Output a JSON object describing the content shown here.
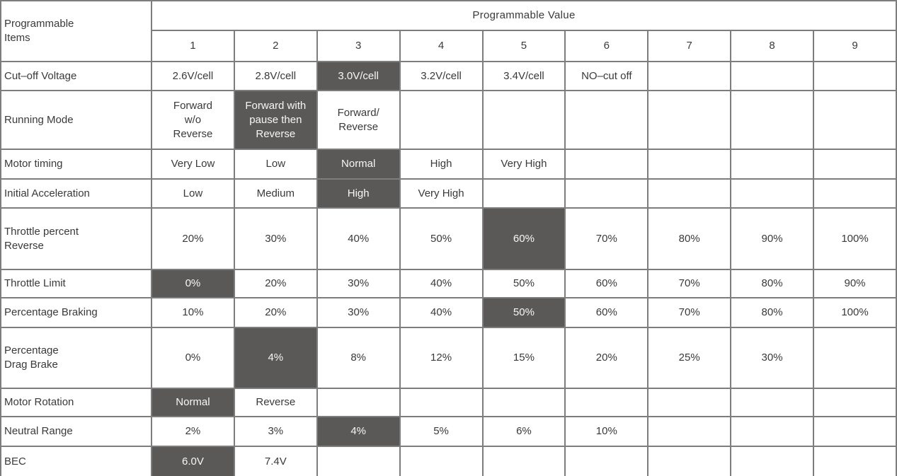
{
  "page": {
    "items_header": "Programmable\nItems",
    "value_header": "Programmable Value",
    "columns": [
      "1",
      "2",
      "3",
      "4",
      "5",
      "6",
      "7",
      "8",
      "9"
    ],
    "rows": [
      {
        "label": "Cut–off Voltage",
        "cells": [
          "2.6V/cell",
          "2.8V/cell",
          "3.0V/cell",
          "3.2V/cell",
          "3.4V/cell",
          "NO–cut off",
          "",
          "",
          ""
        ],
        "selected": 2
      },
      {
        "label": "Running Mode",
        "cells": [
          "Forward\nw/o\nReverse",
          "Forward with\npause then\nReverse",
          "Forward/\nReverse",
          "",
          "",
          "",
          "",
          "",
          ""
        ],
        "selected": 1
      },
      {
        "label": "Motor timing",
        "cells": [
          "Very Low",
          "Low",
          "Normal",
          "High",
          "Very High",
          "",
          "",
          "",
          ""
        ],
        "selected": 2
      },
      {
        "label": "Initial Acceleration",
        "cells": [
          "Low",
          "Medium",
          "High",
          "Very High",
          "",
          "",
          "",
          "",
          ""
        ],
        "selected": 2
      },
      {
        "label": "Throttle percent\nReverse",
        "cells": [
          "20%",
          "30%",
          "40%",
          "50%",
          "60%",
          "70%",
          "80%",
          "90%",
          "100%"
        ],
        "selected": 4
      },
      {
        "label": "Throttle Limit",
        "cells": [
          "0%",
          "20%",
          "30%",
          "40%",
          "50%",
          "60%",
          "70%",
          "80%",
          "90%"
        ],
        "selected": 0
      },
      {
        "label": "Percentage Braking",
        "cells": [
          "10%",
          "20%",
          "30%",
          "40%",
          "50%",
          "60%",
          "70%",
          "80%",
          "100%"
        ],
        "selected": 4
      },
      {
        "label": "Percentage\nDrag Brake",
        "cells": [
          "0%",
          "4%",
          "8%",
          "12%",
          "15%",
          "20%",
          "25%",
          "30%",
          ""
        ],
        "selected": 1
      },
      {
        "label": "Motor Rotation",
        "cells": [
          "Normal",
          "Reverse",
          "",
          "",
          "",
          "",
          "",
          "",
          ""
        ],
        "selected": 0
      },
      {
        "label": "Neutral Range",
        "cells": [
          "2%",
          "3%",
          "4%",
          "5%",
          "6%",
          "10%",
          "",
          "",
          ""
        ],
        "selected": 2
      },
      {
        "label": "BEC",
        "cells": [
          "6.0V",
          "7.4V",
          "",
          "",
          "",
          "",
          "",
          "",
          ""
        ],
        "selected": 0
      }
    ],
    "colors": {
      "highlight": "#5b5858",
      "border": "#7d7d7d",
      "text": "#3b3939",
      "selected_text": "#f7f6f6"
    }
  }
}
